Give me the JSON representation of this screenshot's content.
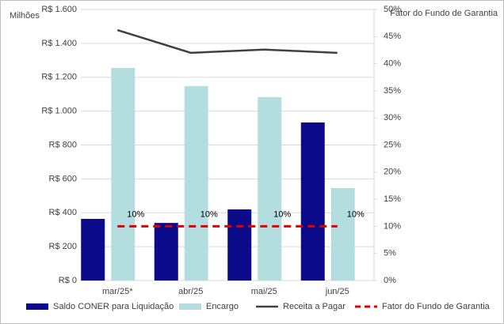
{
  "chart_data": {
    "type": "bar",
    "y_label": "Milhões",
    "y2_label": "Fator do Fundo de Garantia",
    "categories": [
      "mar/25*",
      "abr/25",
      "mai/25",
      "jun/25"
    ],
    "series": [
      {
        "name": "Saldo CONER para Liquidação",
        "type": "bar",
        "color": "#0a0a8a",
        "values": [
          364,
          340,
          420,
          933
        ]
      },
      {
        "name": "Encargo",
        "type": "bar",
        "color": "#b4dde0",
        "values": [
          1255,
          1147,
          1082,
          546
        ]
      },
      {
        "name": "Receita a Pagar",
        "type": "line",
        "axis": "y2",
        "color": "#404040",
        "values": [
          46.2,
          42.0,
          42.6,
          42.0
        ]
      },
      {
        "name": "Fator do Fundo de Garantia",
        "type": "line",
        "axis": "y2",
        "color": "#e00000",
        "dashed": true,
        "values": [
          10,
          10,
          10,
          10
        ],
        "value_labels": [
          "10%",
          "10%",
          "10%",
          "10%"
        ]
      }
    ],
    "ylim": [
      0,
      1600
    ],
    "yticks": [
      {
        "value": 0,
        "label": "R$ 0"
      },
      {
        "value": 200,
        "label": "R$ 200"
      },
      {
        "value": 400,
        "label": "R$ 400"
      },
      {
        "value": 600,
        "label": "R$ 600"
      },
      {
        "value": 800,
        "label": "R$ 800"
      },
      {
        "value": 1000,
        "label": "R$ 1.000"
      },
      {
        "value": 1200,
        "label": "R$ 1.200"
      },
      {
        "value": 1400,
        "label": "R$ 1.400"
      },
      {
        "value": 1600,
        "label": "R$ 1.600"
      }
    ],
    "y2lim": [
      0,
      50
    ],
    "y2ticks": [
      {
        "value": 0,
        "label": "0%"
      },
      {
        "value": 5,
        "label": "5%"
      },
      {
        "value": 10,
        "label": "10%"
      },
      {
        "value": 15,
        "label": "15%"
      },
      {
        "value": 20,
        "label": "20%"
      },
      {
        "value": 25,
        "label": "25%"
      },
      {
        "value": 30,
        "label": "30%"
      },
      {
        "value": 35,
        "label": "35%"
      },
      {
        "value": 40,
        "label": "40%"
      },
      {
        "value": 45,
        "label": "45%"
      },
      {
        "value": 50,
        "label": "50%"
      }
    ],
    "grid": true
  }
}
